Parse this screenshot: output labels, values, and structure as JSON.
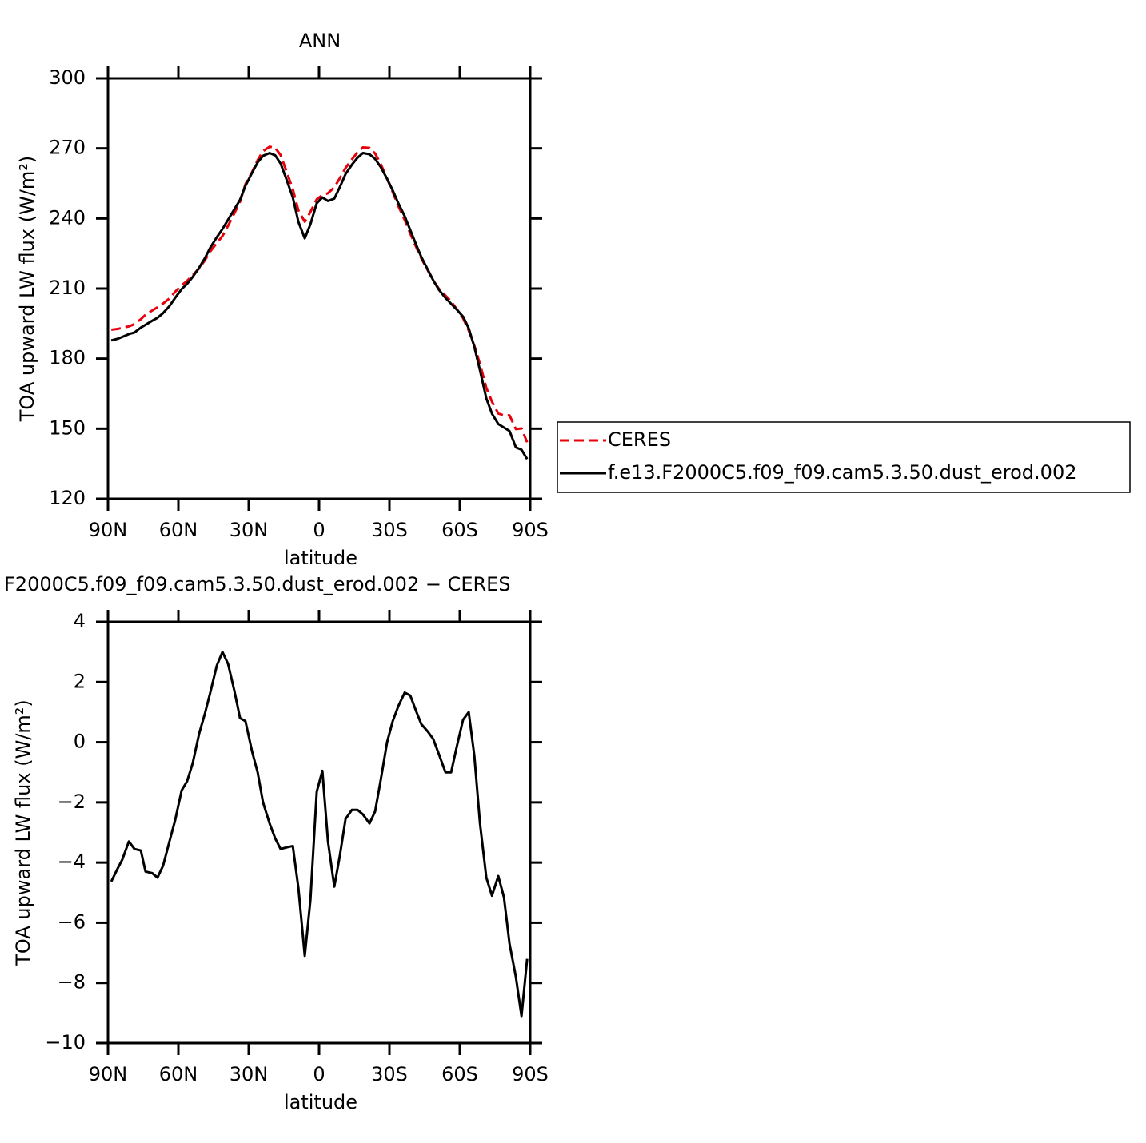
{
  "chart_data": [
    {
      "type": "line",
      "title": "ANN",
      "xlabel": "latitude",
      "ylabel": "TOA upward LW flux (W/m²)",
      "x": [
        88.6,
        85.9,
        83.9,
        81.1,
        78.7,
        76.0,
        74.0,
        71.2,
        68.9,
        66.5,
        63.8,
        61.4,
        58.6,
        56.3,
        53.9,
        51.1,
        48.7,
        46.4,
        43.6,
        41.2,
        38.8,
        36.1,
        33.7,
        31.4,
        28.6,
        26.2,
        23.9,
        21.1,
        18.7,
        16.4,
        14.0,
        11.2,
        8.8,
        6.1,
        3.7,
        1.0,
        -1.4,
        -3.8,
        -6.5,
        -8.9,
        -11.3,
        -14.0,
        -16.4,
        -18.7,
        -21.5,
        -23.9,
        -26.3,
        -29.0,
        -31.4,
        -33.8,
        -36.5,
        -38.9,
        -41.3,
        -43.6,
        -46.4,
        -48.7,
        -51.1,
        -53.9,
        -56.3,
        -58.7,
        -61.4,
        -63.8,
        -66.2,
        -68.6,
        -71.3,
        -73.7,
        -76.4,
        -78.8,
        -81.2,
        -83.9,
        -86.3,
        -88.7
      ],
      "series": [
        {
          "name": "CERES",
          "color": "#e8000b",
          "dashed": true,
          "values": [
            192.4,
            192.7,
            193.2,
            193.8,
            194.8,
            196.9,
            198.8,
            200.6,
            202.0,
            203.6,
            205.8,
            208.6,
            211.4,
            213.3,
            215.7,
            218.7,
            222.1,
            225.9,
            229.5,
            232.5,
            236.9,
            242.3,
            247.2,
            254.7,
            259.8,
            265.0,
            268.8,
            270.7,
            270.2,
            267.1,
            260.5,
            252.5,
            243.4,
            238.6,
            242.8,
            248.2,
            250.0,
            250.8,
            253.3,
            257.3,
            261.6,
            265.3,
            268.3,
            270.4,
            270.2,
            267.8,
            263.3,
            257.0,
            251.3,
            245.3,
            239.4,
            233.5,
            228.0,
            222.9,
            217.7,
            213.4,
            209.9,
            207.0,
            204.5,
            201.2,
            197.3,
            192.0,
            185.5,
            177.7,
            167.5,
            161.6,
            156.5,
            155.7,
            155.7,
            149.8,
            150.1,
            144.2
          ]
        },
        {
          "name": "f.e13.F2000C5.f09_f09.cam5.3.50.dust_erod.002",
          "color": "#000000",
          "dashed": false,
          "values": [
            187.8,
            188.5,
            189.3,
            190.5,
            191.2,
            193.3,
            194.5,
            196.2,
            197.5,
            199.5,
            202.5,
            206.0,
            209.8,
            212.0,
            215.0,
            219.0,
            223.0,
            227.5,
            232.0,
            235.5,
            239.5,
            244.0,
            248.0,
            254.0,
            259.5,
            264.0,
            266.8,
            268.0,
            267.0,
            263.5,
            257.0,
            249.0,
            238.5,
            231.5,
            237.5,
            246.5,
            249.0,
            247.5,
            248.5,
            253.5,
            259.0,
            263.0,
            266.0,
            268.0,
            267.5,
            265.5,
            262.0,
            257.0,
            252.0,
            246.5,
            241.0,
            235.0,
            229.0,
            223.5,
            218.0,
            213.5,
            209.5,
            206.0,
            203.5,
            201.0,
            198.0,
            193.0,
            185.0,
            175.0,
            163.0,
            156.5,
            152.0,
            150.5,
            149.0,
            142.0,
            141.0,
            137.0
          ]
        }
      ],
      "xlim": [
        90,
        -90
      ],
      "xticks": [
        {
          "value": 90,
          "label": "90N"
        },
        {
          "value": 60,
          "label": "60N"
        },
        {
          "value": 30,
          "label": "30N"
        },
        0,
        {
          "value": -30,
          "label": "30S"
        },
        {
          "value": -60,
          "label": "60S"
        },
        {
          "value": -90,
          "label": "90S"
        }
      ],
      "ylim": [
        120,
        300
      ],
      "yticks": [
        120,
        150,
        180,
        210,
        240,
        270,
        300
      ],
      "legend": "right"
    },
    {
      "type": "line",
      "title": "F2000C5.f09_f09.cam5.3.50.dust_erod.002 − CERES",
      "xlabel": "latitude",
      "ylabel": "TOA upward LW flux (W/m²)",
      "x": [
        88.6,
        85.9,
        83.9,
        81.1,
        78.7,
        76.0,
        74.0,
        71.2,
        68.9,
        66.5,
        63.8,
        61.4,
        58.6,
        56.3,
        53.9,
        51.1,
        48.7,
        46.4,
        43.6,
        41.2,
        38.8,
        36.1,
        33.7,
        31.4,
        28.6,
        26.2,
        23.9,
        21.1,
        18.7,
        16.4,
        14.0,
        11.2,
        8.8,
        6.1,
        3.7,
        1.0,
        -1.4,
        -3.8,
        -6.5,
        -8.9,
        -11.3,
        -14.0,
        -16.4,
        -18.7,
        -21.5,
        -23.9,
        -26.3,
        -29.0,
        -31.4,
        -33.8,
        -36.5,
        -38.9,
        -41.3,
        -43.6,
        -46.4,
        -48.7,
        -51.1,
        -53.9,
        -56.3,
        -58.7,
        -61.4,
        -63.8,
        -66.2,
        -68.6,
        -71.3,
        -73.7,
        -76.4,
        -78.8,
        -81.2,
        -83.9,
        -86.3,
        -88.7
      ],
      "series": [
        {
          "color": "#000000",
          "dashed": false,
          "values": [
            -4.63,
            -4.2,
            -3.9,
            -3.3,
            -3.55,
            -3.6,
            -4.3,
            -4.35,
            -4.5,
            -4.1,
            -3.3,
            -2.6,
            -1.6,
            -1.3,
            -0.7,
            0.3,
            0.95,
            1.65,
            2.55,
            3.0,
            2.6,
            1.7,
            0.8,
            0.7,
            -0.3,
            -1.0,
            -2.0,
            -2.7,
            -3.2,
            -3.55,
            -3.5,
            -3.45,
            -4.85,
            -7.1,
            -5.25,
            -1.65,
            -0.95,
            -3.3,
            -4.8,
            -3.75,
            -2.55,
            -2.25,
            -2.25,
            -2.4,
            -2.7,
            -2.3,
            -1.25,
            0.0,
            0.7,
            1.2,
            1.65,
            1.55,
            1.05,
            0.6,
            0.35,
            0.1,
            -0.4,
            -1.0,
            -1.0,
            -0.15,
            0.75,
            1.0,
            -0.45,
            -2.7,
            -4.5,
            -5.1,
            -4.45,
            -5.15,
            -6.7,
            -7.8,
            -9.1,
            -7.2
          ]
        }
      ],
      "xlim": [
        90,
        -90
      ],
      "xticks": [
        {
          "value": 90,
          "label": "90N"
        },
        {
          "value": 60,
          "label": "60N"
        },
        {
          "value": 30,
          "label": "30N"
        },
        0,
        {
          "value": -30,
          "label": "30S"
        },
        {
          "value": -60,
          "label": "60S"
        },
        {
          "value": -90,
          "label": "90S"
        }
      ],
      "ylim": [
        -10,
        4
      ],
      "yticks": [
        {
          "value": -10,
          "label": "−10"
        },
        {
          "value": -8,
          "label": "−8"
        },
        {
          "value": -6,
          "label": "−6"
        },
        {
          "value": -4,
          "label": "−4"
        },
        {
          "value": -2,
          "label": "−2"
        },
        0,
        2,
        4
      ]
    }
  ]
}
